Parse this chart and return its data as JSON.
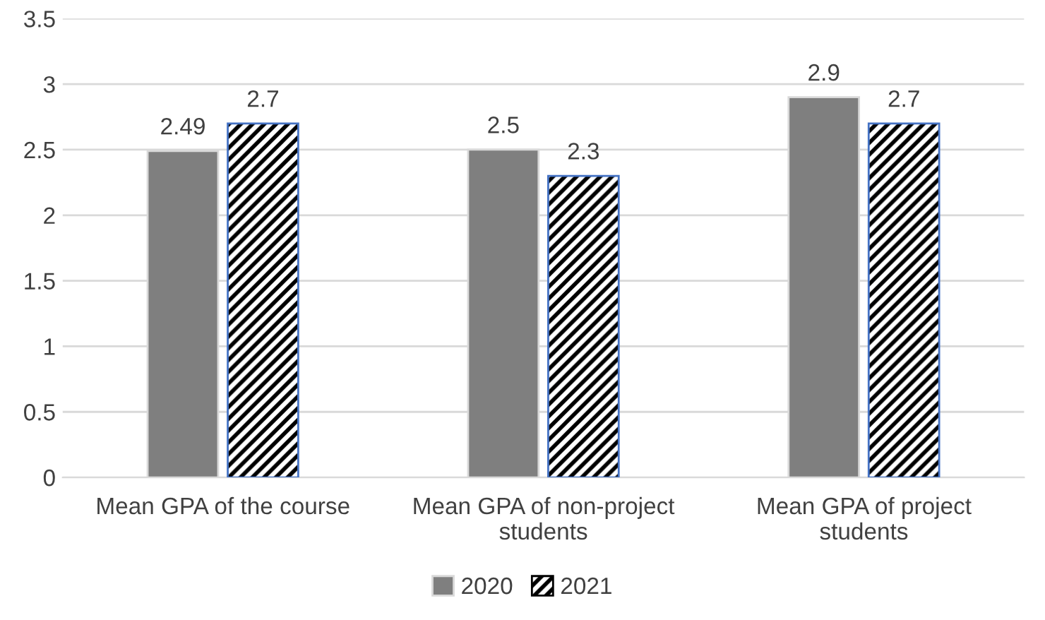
{
  "chart_data": {
    "type": "bar",
    "categories": [
      "Mean GPA of the course",
      "Mean GPA of non-project\nstudents",
      "Mean GPA of project\nstudents"
    ],
    "series": [
      {
        "name": "2020",
        "color": "#7f7f7f",
        "values": [
          2.49,
          2.5,
          2.9
        ]
      },
      {
        "name": "2021",
        "color": "#000000",
        "values": [
          2.7,
          2.3,
          2.7
        ]
      }
    ],
    "ylim": [
      0,
      3.5
    ],
    "yticks": [
      0,
      0.5,
      1,
      1.5,
      2,
      2.5,
      3,
      3.5
    ],
    "grid": "y",
    "legend": "bottom",
    "data_labels": true
  }
}
